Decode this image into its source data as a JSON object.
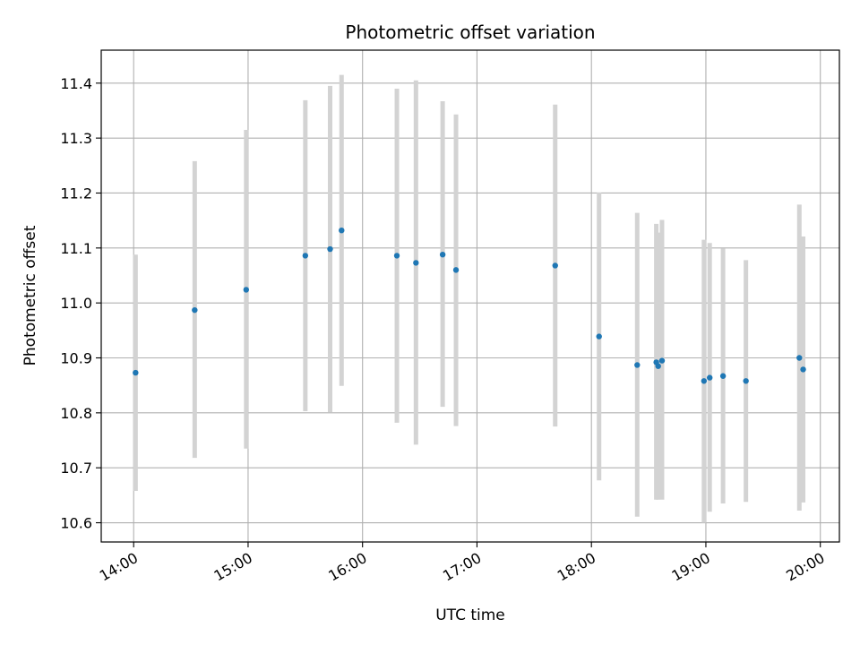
{
  "chart_data": {
    "type": "scatter",
    "title": "Photometric offset variation",
    "xlabel": "UTC time",
    "ylabel": "Photometric offset",
    "grid": true,
    "xlim": [
      "13:43",
      "20:10"
    ],
    "ylim": [
      10.565,
      11.46
    ],
    "x_ticks": [
      "14:00",
      "15:00",
      "16:00",
      "17:00",
      "18:00",
      "19:00",
      "20:00"
    ],
    "y_ticks": [
      "10.6",
      "10.7",
      "10.8",
      "10.9",
      "11.0",
      "11.1",
      "11.2",
      "11.3",
      "11.4"
    ],
    "colors": {
      "point": "#1f77b4",
      "errorbar": "#d3d3d3",
      "grid": "#b0b0b0"
    },
    "points": [
      {
        "x": "14:01",
        "y": 10.873,
        "ylow": 10.658,
        "yhigh": 11.088
      },
      {
        "x": "14:32",
        "y": 10.987,
        "ylow": 10.718,
        "yhigh": 11.258
      },
      {
        "x": "14:59",
        "y": 11.024,
        "ylow": 10.735,
        "yhigh": 11.315
      },
      {
        "x": "15:30",
        "y": 11.086,
        "ylow": 10.803,
        "yhigh": 11.369
      },
      {
        "x": "15:43",
        "y": 11.098,
        "ylow": 10.801,
        "yhigh": 11.395
      },
      {
        "x": "15:49",
        "y": 11.132,
        "ylow": 10.849,
        "yhigh": 11.415
      },
      {
        "x": "16:18",
        "y": 11.086,
        "ylow": 10.782,
        "yhigh": 11.39
      },
      {
        "x": "16:28",
        "y": 11.073,
        "ylow": 10.742,
        "yhigh": 11.405
      },
      {
        "x": "16:42",
        "y": 11.088,
        "ylow": 10.811,
        "yhigh": 11.367
      },
      {
        "x": "16:49",
        "y": 11.06,
        "ylow": 10.776,
        "yhigh": 11.343
      },
      {
        "x": "17:41",
        "y": 11.068,
        "ylow": 10.775,
        "yhigh": 11.361
      },
      {
        "x": "18:04",
        "y": 10.939,
        "ylow": 10.677,
        "yhigh": 11.201
      },
      {
        "x": "18:24",
        "y": 10.887,
        "ylow": 10.611,
        "yhigh": 11.164
      },
      {
        "x": "18:34",
        "y": 10.892,
        "ylow": 10.642,
        "yhigh": 11.144
      },
      {
        "x": "18:35",
        "y": 10.885,
        "ylow": 10.642,
        "yhigh": 11.128
      },
      {
        "x": "18:37",
        "y": 10.895,
        "ylow": 10.642,
        "yhigh": 11.151
      },
      {
        "x": "18:59",
        "y": 10.858,
        "ylow": 10.6,
        "yhigh": 11.115
      },
      {
        "x": "19:02",
        "y": 10.864,
        "ylow": 10.62,
        "yhigh": 11.109
      },
      {
        "x": "19:09",
        "y": 10.867,
        "ylow": 10.635,
        "yhigh": 11.099
      },
      {
        "x": "19:21",
        "y": 10.858,
        "ylow": 10.638,
        "yhigh": 11.078
      },
      {
        "x": "19:49",
        "y": 10.9,
        "ylow": 10.622,
        "yhigh": 11.179
      },
      {
        "x": "19:51",
        "y": 10.879,
        "ylow": 10.637,
        "yhigh": 11.121
      }
    ]
  }
}
